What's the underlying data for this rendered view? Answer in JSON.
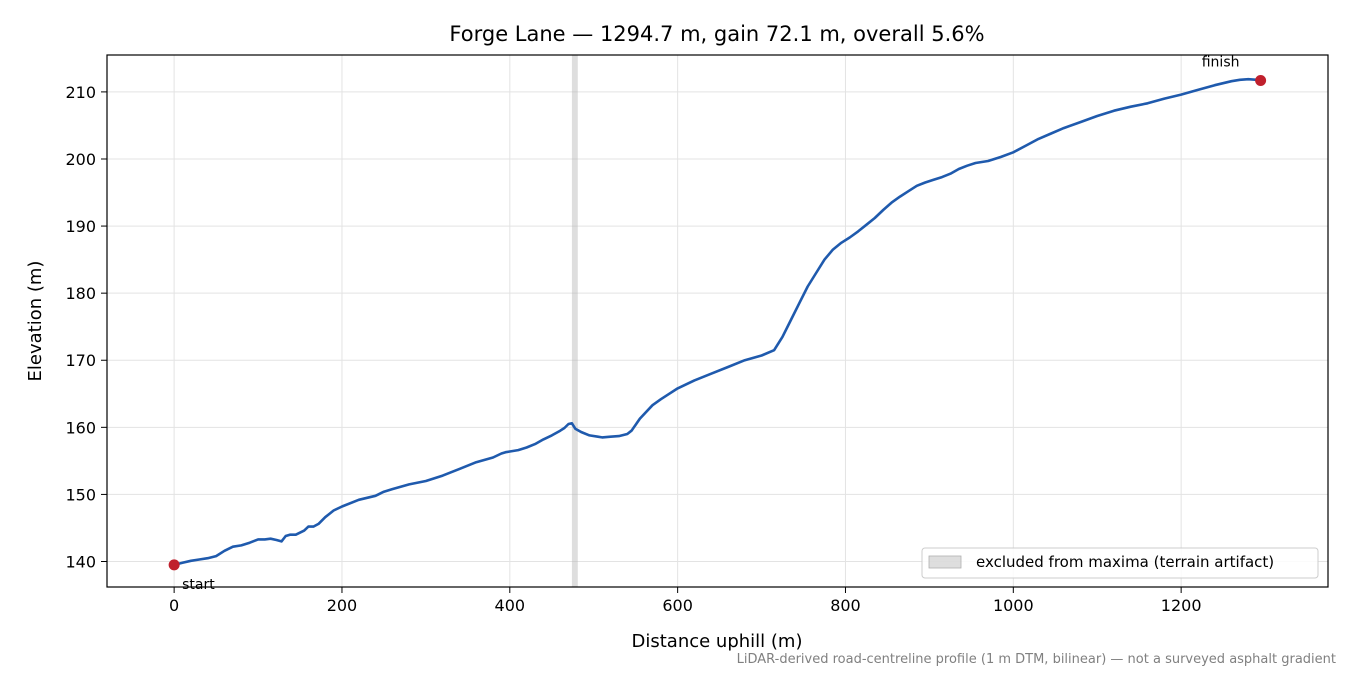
{
  "chart_data": {
    "type": "line",
    "title": "Forge Lane — 1294.7 m, gain 72.1 m, overall 5.6%",
    "xlabel": "Distance uphill (m)",
    "ylabel": "Elevation (m)",
    "xlim": [
      -80,
      1375
    ],
    "ylim": [
      136.2,
      215.5
    ],
    "x_ticks": [
      0,
      200,
      400,
      600,
      800,
      1000,
      1200
    ],
    "y_ticks": [
      140,
      150,
      160,
      170,
      180,
      190,
      200,
      210
    ],
    "grid": true,
    "legend_position": "lower-right",
    "line_color": "#1f5aad",
    "series": [
      {
        "x": [
          0,
          10,
          20,
          30,
          40,
          50,
          60,
          70,
          80,
          90,
          100,
          108,
          115,
          122,
          128,
          133,
          138,
          145,
          155,
          160,
          166,
          172,
          180,
          185,
          190,
          200,
          220,
          240,
          250,
          260,
          280,
          300,
          320,
          340,
          360,
          380,
          390,
          395,
          400,
          410,
          420,
          430,
          440,
          450,
          460,
          465,
          470,
          474,
          478,
          485,
          495,
          505,
          510,
          520,
          530,
          540,
          545,
          555,
          570,
          580,
          590,
          600,
          620,
          640,
          660,
          680,
          700,
          715,
          725,
          735,
          745,
          755,
          765,
          775,
          785,
          795,
          805,
          815,
          825,
          835,
          845,
          855,
          865,
          875,
          885,
          895,
          905,
          915,
          925,
          935,
          945,
          955,
          970,
          985,
          1000,
          1015,
          1030,
          1045,
          1060,
          1080,
          1100,
          1120,
          1140,
          1160,
          1180,
          1200,
          1220,
          1240,
          1260,
          1270,
          1280,
          1290,
          1294.7
        ],
        "y": [
          139.5,
          139.8,
          140.1,
          140.3,
          140.5,
          140.8,
          141.6,
          142.2,
          142.4,
          142.8,
          143.3,
          143.3,
          143.4,
          143.2,
          143.0,
          143.8,
          144.0,
          144.0,
          144.6,
          145.2,
          145.2,
          145.6,
          146.6,
          147.1,
          147.6,
          148.2,
          149.2,
          149.8,
          150.4,
          150.8,
          151.5,
          152.0,
          152.8,
          153.8,
          154.8,
          155.5,
          156.1,
          156.3,
          156.4,
          156.6,
          157.0,
          157.5,
          158.2,
          158.8,
          159.5,
          159.9,
          160.5,
          160.6,
          159.8,
          159.3,
          158.8,
          158.6,
          158.5,
          158.6,
          158.7,
          159.0,
          159.5,
          161.3,
          163.3,
          164.2,
          165.0,
          165.8,
          167.0,
          168.0,
          169.0,
          170.0,
          170.7,
          171.5,
          173.5,
          176.0,
          178.5,
          181.0,
          183.0,
          185.0,
          186.5,
          187.5,
          188.3,
          189.2,
          190.2,
          191.2,
          192.4,
          193.5,
          194.4,
          195.2,
          196.0,
          196.5,
          196.9,
          197.3,
          197.8,
          198.5,
          199.0,
          199.4,
          199.7,
          200.3,
          201.0,
          202.0,
          203.0,
          203.8,
          204.6,
          205.5,
          206.4,
          207.2,
          207.8,
          208.3,
          209.0,
          209.6,
          210.3,
          211.0,
          211.6,
          211.8,
          211.9,
          211.8,
          211.7
        ]
      }
    ],
    "markers": [
      {
        "label": "start",
        "x": 0,
        "y": 139.5,
        "color": "#c0202d"
      },
      {
        "label": "finish",
        "x": 1294.7,
        "y": 211.7,
        "color": "#c0202d"
      }
    ],
    "excluded_band": {
      "x_from": 474,
      "x_to": 481,
      "label": "excluded from maxima (terrain artifact)"
    },
    "footnote": "LiDAR-derived road-centreline profile (1 m DTM, bilinear) — not a surveyed asphalt gradient"
  }
}
